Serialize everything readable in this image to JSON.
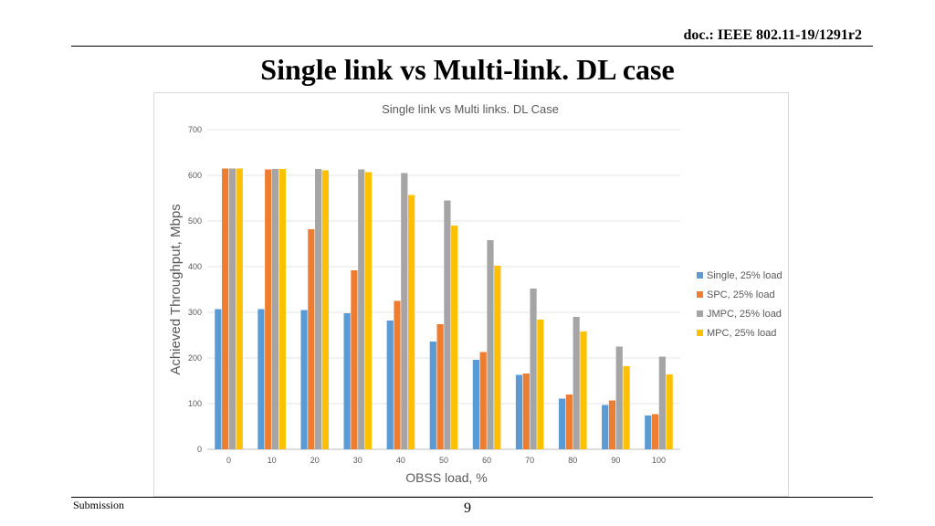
{
  "header": {
    "doc_id": "doc.: IEEE 802.11-19/1291r2"
  },
  "slide": {
    "title": "Single link vs Multi-link. DL case"
  },
  "footer": {
    "submission": "Submission",
    "page": "9"
  },
  "chart_data": {
    "type": "bar",
    "title": "Single link vs Multi links. DL Case",
    "xlabel": "OBSS load, %",
    "ylabel": "Achieved Throughput, Mbps",
    "ylim": [
      0,
      700
    ],
    "yticks": [
      0,
      100,
      200,
      300,
      400,
      500,
      600,
      700
    ],
    "grid": true,
    "legend_position": "right",
    "categories": [
      "0",
      "10",
      "20",
      "30",
      "40",
      "50",
      "60",
      "70",
      "80",
      "90",
      "100"
    ],
    "series": [
      {
        "name": "Single, 25% load",
        "color": "#5B9BD5",
        "values": [
          307,
          307,
          305,
          298,
          282,
          236,
          196,
          163,
          111,
          97,
          74
        ]
      },
      {
        "name": "SPC, 25% load",
        "color": "#ED7D31",
        "values": [
          615,
          613,
          482,
          392,
          325,
          274,
          213,
          166,
          120,
          107,
          77
        ]
      },
      {
        "name": "JMPC, 25% load",
        "color": "#A5A5A5",
        "values": [
          615,
          614,
          614,
          613,
          605,
          545,
          458,
          352,
          290,
          225,
          203
        ]
      },
      {
        "name": "MPC, 25% load",
        "color": "#FFC000",
        "values": [
          615,
          614,
          611,
          607,
          557,
          490,
          402,
          284,
          258,
          182,
          164
        ]
      }
    ]
  }
}
